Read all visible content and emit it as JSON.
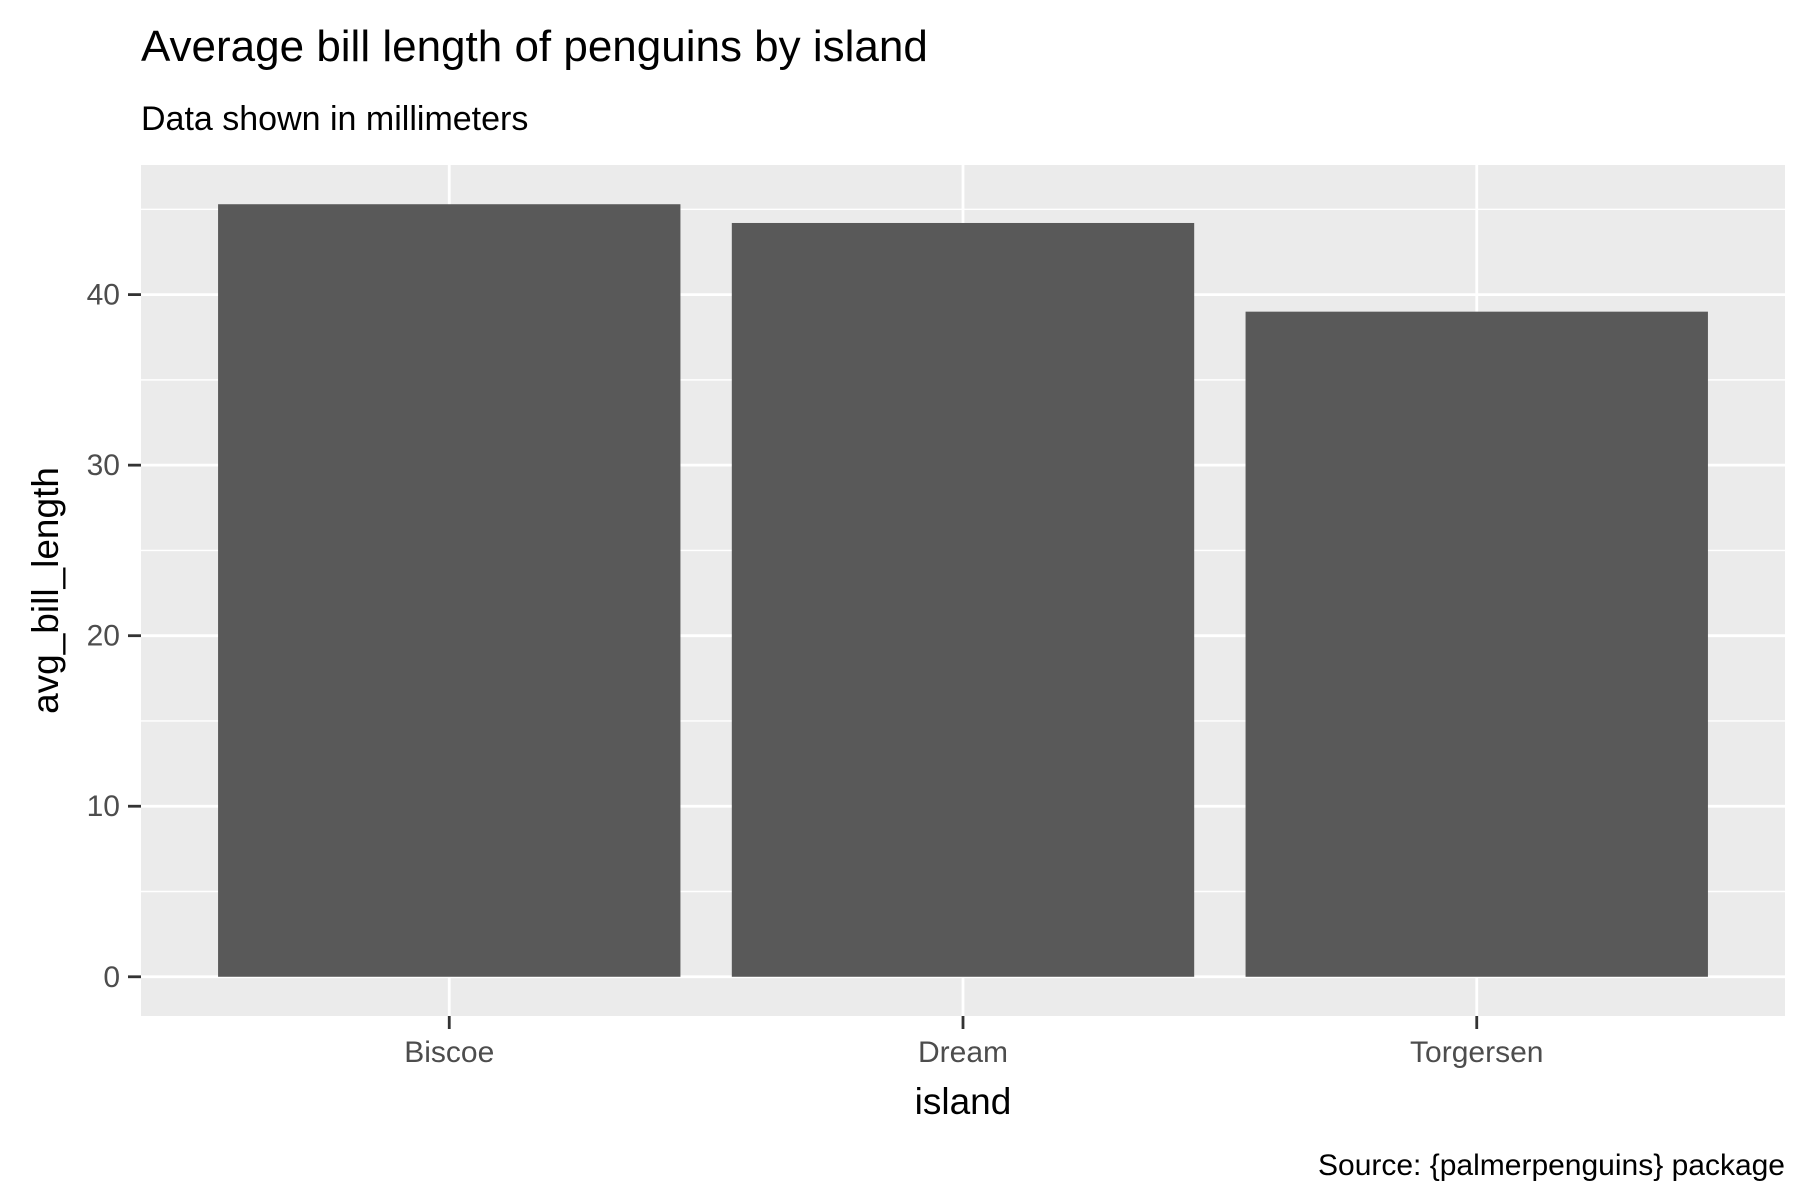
{
  "chart_data": {
    "type": "bar",
    "title": "Average bill length of penguins by island",
    "subtitle": "Data shown in millimeters",
    "caption": "Source: {palmerpenguins} package",
    "xlabel": "island",
    "ylabel": "avg_bill_length",
    "categories": [
      "Biscoe",
      "Dream",
      "Torgersen"
    ],
    "values": [
      45.3,
      44.2,
      39.0
    ],
    "ylim": [
      -2.3,
      47.6
    ],
    "yticks": [
      0,
      10,
      20,
      30,
      40
    ],
    "grid": true,
    "legend": "none",
    "colors": {
      "bar": "#595959",
      "panel": "#ebebeb",
      "grid": "#ffffff",
      "tick_text": "#4d4d4d"
    }
  }
}
